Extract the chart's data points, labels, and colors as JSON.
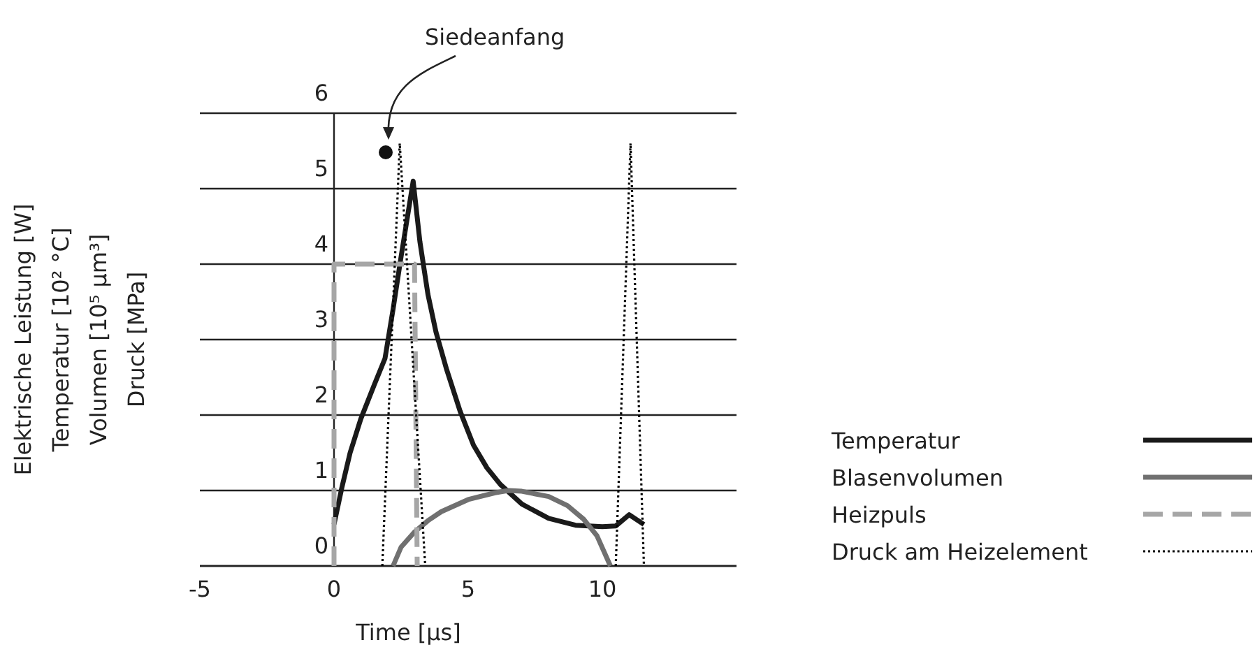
{
  "chart_data": {
    "type": "line",
    "xlabel": "Time [µs]",
    "ylabel": "Elektrische Leistung [W]\nTemperatur [10² °C]\nVolumen [10⁵ µm³]\nDruck [MPa]",
    "xlim": [
      -5,
      15
    ],
    "xticks": [
      -5,
      0,
      5,
      10
    ],
    "ylim": [
      0,
      6
    ],
    "yticks": [
      0,
      1,
      2,
      3,
      4,
      5,
      6
    ],
    "grid": "y",
    "legend": "right",
    "marker": "none",
    "annotations": [
      "Siedeanfang"
    ],
    "series": [
      {
        "name": "Temperatur",
        "color": "#1a1a1a",
        "line_style": "solid",
        "x": [
          0,
          0.3,
          0.6,
          1.0,
          1.5,
          1.9,
          2.2,
          2.5,
          2.95,
          3.2,
          3.5,
          3.8,
          4.2,
          4.7,
          5.2,
          5.7,
          6.2,
          7,
          8,
          9,
          10,
          10.5,
          11.0,
          11.55
        ],
        "values": [
          0.55,
          1.05,
          1.5,
          1.95,
          2.4,
          2.75,
          3.4,
          4.1,
          5.1,
          4.3,
          3.6,
          3.1,
          2.6,
          2.05,
          1.6,
          1.3,
          1.08,
          0.82,
          0.63,
          0.54,
          0.52,
          0.53,
          0.68,
          0.55
        ]
      },
      {
        "name": "Blasenvolumen",
        "color": "#707070",
        "line_style": "solid",
        "x": [
          2.2,
          2.5,
          3,
          3.5,
          4,
          5,
          6,
          6.5,
          7,
          8,
          8.7,
          9.3,
          9.8,
          10.3
        ],
        "values": [
          0,
          0.25,
          0.45,
          0.6,
          0.72,
          0.88,
          0.97,
          1.0,
          0.99,
          0.92,
          0.8,
          0.62,
          0.4,
          0
        ]
      },
      {
        "name": "Heizpuls",
        "color": "#a6a6a6",
        "line_style": "dashed",
        "x": [
          0,
          0,
          3.0,
          3.1
        ],
        "values": [
          0,
          4,
          4,
          0
        ]
      },
      {
        "name": "Druck am Heizelement",
        "color": "#000000",
        "line_style": "dotted",
        "x": [
          1.8,
          2.45,
          3.4,
          7,
          10.5,
          11.05,
          11.55
        ],
        "values": [
          0,
          5.6,
          0,
          null,
          0,
          5.6,
          0
        ]
      }
    ]
  }
}
